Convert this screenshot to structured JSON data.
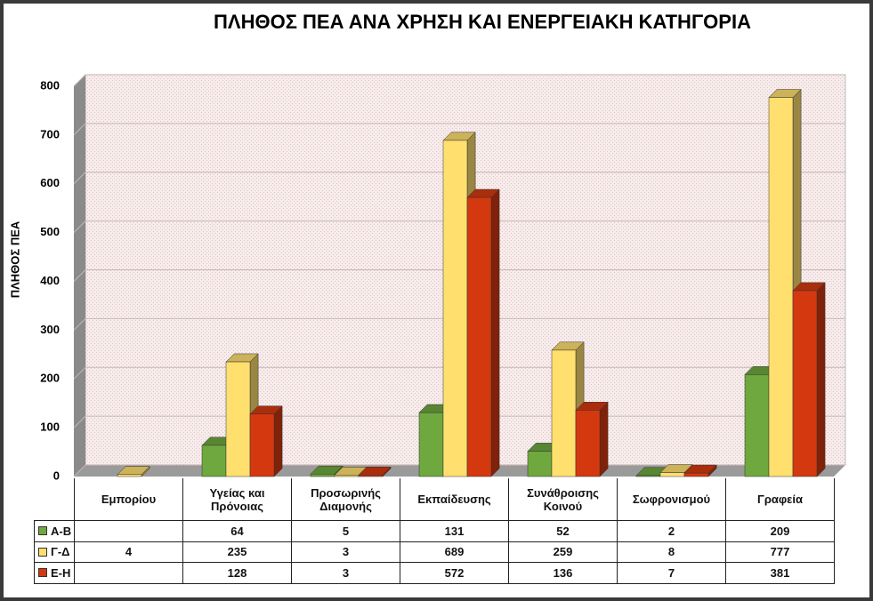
{
  "chart_data": {
    "type": "bar3d",
    "title": "ΠΛΗΘΟΣ ΠΕΑ ΑΝΑ ΧΡΗΣΗ ΚΑΙ ΕΝΕΡΓΕΙΑΚΗ ΚΑΤΗΓΟΡΙΑ",
    "y_axis_label": "ΠΛΗΘΟΣ ΠΕΑ",
    "categories": [
      "Εμπορίου",
      "Υγείας και Πρόνοιας",
      "Προσωρινής Διαμονής",
      "Εκπαίδευσης",
      "Συνάθροισης Κοινού",
      "Σωφρονισμού",
      "Γραφεία"
    ],
    "series": [
      {
        "name": "Α-Β",
        "color": "#6fa83e",
        "values": [
          null,
          64,
          5,
          131,
          52,
          2,
          209
        ]
      },
      {
        "name": "Γ-Δ",
        "color": "#ffdf6e",
        "values": [
          4,
          235,
          3,
          689,
          259,
          8,
          777
        ]
      },
      {
        "name": "Ε-Η",
        "color": "#d4380f",
        "values": [
          null,
          128,
          3,
          572,
          136,
          7,
          381
        ]
      }
    ],
    "ylim": [
      0,
      800
    ],
    "yticks": [
      0,
      100,
      200,
      300,
      400,
      500,
      600,
      700,
      800
    ],
    "grid": true,
    "data_table": true
  }
}
